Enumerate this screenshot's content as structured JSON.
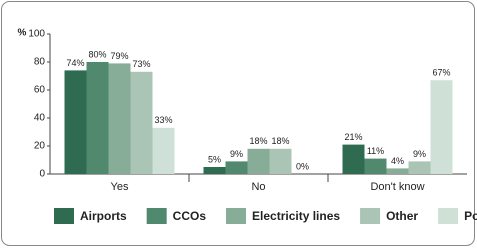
{
  "chart_data": {
    "type": "bar",
    "ylabel": "%",
    "categories": [
      "Yes",
      "No",
      "Don't know"
    ],
    "series": [
      {
        "name": "Airports",
        "color": "#2f6b50",
        "values": [
          74,
          5,
          21
        ],
        "value_labels": [
          "74%",
          "5%",
          "21%"
        ]
      },
      {
        "name": "CCOs",
        "color": "#51896f",
        "values": [
          80,
          9,
          11
        ],
        "value_labels": [
          "80%",
          "9%",
          "11%"
        ]
      },
      {
        "name": "Electricity lines",
        "color": "#87ad99",
        "values": [
          79,
          18,
          4
        ],
        "value_labels": [
          "79%",
          "18%",
          "4%"
        ]
      },
      {
        "name": "Other",
        "color": "#aac4b5",
        "values": [
          73,
          18,
          9
        ],
        "value_labels": [
          "73%",
          "18%",
          "9%"
        ]
      },
      {
        "name": "Ports",
        "color": "#cfe1d7",
        "values": [
          33,
          0,
          67
        ],
        "value_labels": [
          "33%",
          "0%",
          "67%"
        ]
      }
    ],
    "ylim": [
      0,
      100
    ],
    "yticks": [
      0,
      20,
      40,
      60,
      80,
      100
    ],
    "grid": false,
    "legend": "bottom"
  }
}
